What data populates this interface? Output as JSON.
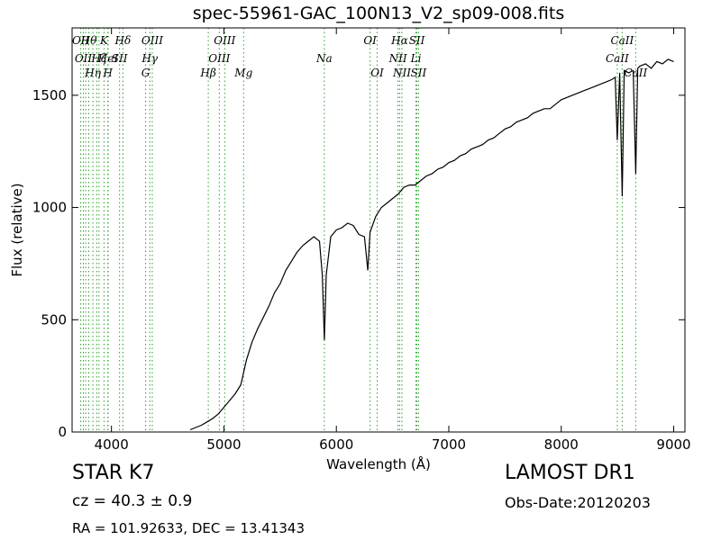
{
  "chart_data": {
    "type": "line",
    "title": "spec-55961-GAC_100N13_V2_sp09-008.fits",
    "xlabel": "Wavelength (Å)",
    "ylabel": "Flux (relative)",
    "xlim": [
      3650,
      9100
    ],
    "ylim": [
      0,
      1800
    ],
    "xticks": [
      4000,
      5000,
      6000,
      7000,
      8000,
      9000
    ],
    "yticks": [
      0,
      500,
      1000,
      1500
    ],
    "grid": false,
    "line_color": "#000000",
    "marker_color": "#2ca02c",
    "series": [
      {
        "x": [
          4700,
          4750,
          4800,
          4850,
          4900,
          4950,
          5000,
          5050,
          5100,
          5150,
          5200,
          5250,
          5300,
          5350,
          5400,
          5450,
          5500,
          5550,
          5600,
          5650,
          5700,
          5750,
          5800,
          5850,
          5875,
          5893,
          5910,
          5950,
          6000,
          6050,
          6100,
          6150,
          6200,
          6250,
          6280,
          6300,
          6350,
          6400,
          6450,
          6500,
          6550,
          6600,
          6650,
          6700,
          6750,
          6800,
          6850,
          6900,
          6950,
          7000,
          7050,
          7100,
          7150,
          7200,
          7250,
          7300,
          7350,
          7400,
          7450,
          7500,
          7550,
          7600,
          7650,
          7700,
          7750,
          7800,
          7850,
          7900,
          7950,
          8000,
          8050,
          8100,
          8150,
          8200,
          8250,
          8300,
          8350,
          8400,
          8450,
          8480,
          8498,
          8520,
          8542,
          8560,
          8600,
          8640,
          8662,
          8680,
          8700,
          8750,
          8800,
          8850,
          8900,
          8950,
          9000
        ],
        "values": [
          10,
          20,
          30,
          45,
          60,
          80,
          110,
          140,
          170,
          210,
          320,
          400,
          460,
          510,
          560,
          620,
          660,
          720,
          760,
          800,
          830,
          850,
          870,
          850,
          700,
          410,
          700,
          870,
          900,
          910,
          930,
          920,
          880,
          870,
          720,
          890,
          960,
          1000,
          1020,
          1040,
          1060,
          1090,
          1100,
          1100,
          1120,
          1140,
          1150,
          1170,
          1180,
          1200,
          1210,
          1230,
          1240,
          1260,
          1270,
          1280,
          1300,
          1310,
          1330,
          1350,
          1360,
          1380,
          1390,
          1400,
          1420,
          1430,
          1440,
          1440,
          1460,
          1480,
          1490,
          1500,
          1510,
          1520,
          1530,
          1540,
          1550,
          1560,
          1570,
          1580,
          1300,
          1600,
          1050,
          1610,
          1600,
          1610,
          1150,
          1620,
          1630,
          1640,
          1620,
          1650,
          1640,
          1660,
          1650
        ]
      }
    ],
    "line_markers": [
      {
        "wave": 3727,
        "label": "OII",
        "tier": "top"
      },
      {
        "wave": 3750,
        "label": "OII",
        "tier": "mid"
      },
      {
        "wave": 3771,
        "label": "",
        "tier": "none"
      },
      {
        "wave": 3798,
        "label": "Hθ",
        "tier": "top"
      },
      {
        "wave": 3835,
        "label": "Hη",
        "tier": "bottom"
      },
      {
        "wave": 3869,
        "label": "",
        "tier": "none"
      },
      {
        "wave": 3889,
        "label": "Hζ",
        "tier": "mid"
      },
      {
        "wave": 3934,
        "label": "K",
        "tier": "top"
      },
      {
        "wave": 3968,
        "label": "H",
        "tier": "bottom"
      },
      {
        "wave": 3970,
        "label": "HeI",
        "tier": "mid"
      },
      {
        "wave": 4072,
        "label": "SII",
        "tier": "mid"
      },
      {
        "wave": 4102,
        "label": "Hδ",
        "tier": "top"
      },
      {
        "wave": 4304,
        "label": "G",
        "tier": "bottom"
      },
      {
        "wave": 4341,
        "label": "Hγ",
        "tier": "mid"
      },
      {
        "wave": 4363,
        "label": "OIII",
        "tier": "top"
      },
      {
        "wave": 4861,
        "label": "Hβ",
        "tier": "bottom"
      },
      {
        "wave": 4959,
        "label": "OIII",
        "tier": "mid"
      },
      {
        "wave": 5007,
        "label": "OIII",
        "tier": "top"
      },
      {
        "wave": 5175,
        "label": "Mg",
        "tier": "bottom"
      },
      {
        "wave": 5893,
        "label": "Na",
        "tier": "mid"
      },
      {
        "wave": 6300,
        "label": "OI",
        "tier": "top"
      },
      {
        "wave": 6363,
        "label": "OI",
        "tier": "bottom"
      },
      {
        "wave": 6548,
        "label": "NII",
        "tier": "mid"
      },
      {
        "wave": 6563,
        "label": "Hα",
        "tier": "top"
      },
      {
        "wave": 6583,
        "label": "NII",
        "tier": "bottom"
      },
      {
        "wave": 6708,
        "label": "Li",
        "tier": "mid"
      },
      {
        "wave": 6716,
        "label": "SII",
        "tier": "top"
      },
      {
        "wave": 6731,
        "label": "SII",
        "tier": "bottom"
      },
      {
        "wave": 8498,
        "label": "CaII",
        "tier": "mid"
      },
      {
        "wave": 8542,
        "label": "CaII",
        "tier": "top"
      },
      {
        "wave": 8662,
        "label": "CaII",
        "tier": "bottom"
      }
    ]
  },
  "info": {
    "object_class": "STAR   K7",
    "cz_line": "cz = 40.3  ± 0.9",
    "radec_line": "RA = 101.92633, DEC = 13.41343",
    "survey": "LAMOST DR1",
    "obs_date": "Obs-Date:20120203"
  }
}
